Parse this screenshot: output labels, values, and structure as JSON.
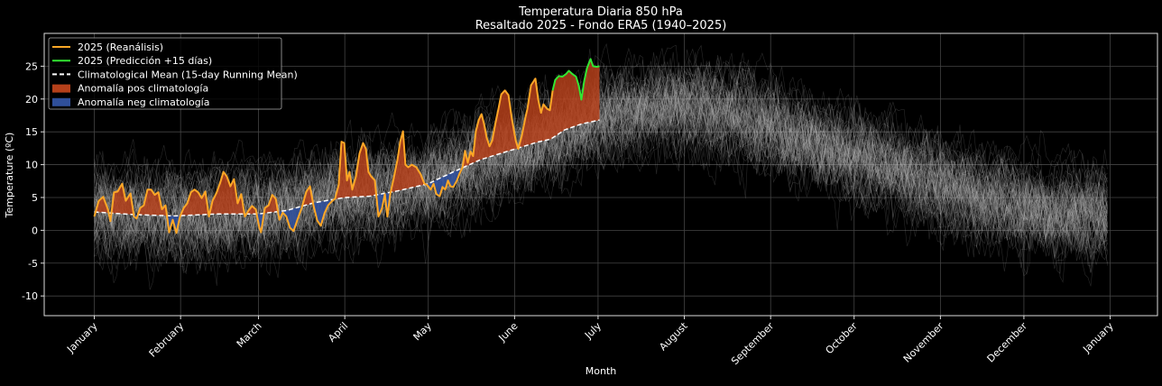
{
  "chart_data": {
    "type": "line",
    "title": "Temperatura Diaria 850 hPa",
    "subtitle": "Resaltado 2025 - Fondo ERA5 (1940–2025)",
    "xlabel": "Month",
    "ylabel": "Temperature (ºC)",
    "ylim": [
      -13,
      30
    ],
    "xlim_day_of_year": [
      -17,
      383
    ],
    "grid": true,
    "legend_position": "top-left",
    "x_ticks": [
      {
        "day": 1,
        "label": "January"
      },
      {
        "day": 32,
        "label": "February"
      },
      {
        "day": 60,
        "label": "March"
      },
      {
        "day": 91,
        "label": "April"
      },
      {
        "day": 121,
        "label": "May"
      },
      {
        "day": 152,
        "label": "June"
      },
      {
        "day": 182,
        "label": "July"
      },
      {
        "day": 213,
        "label": "August"
      },
      {
        "day": 244,
        "label": "September"
      },
      {
        "day": 274,
        "label": "October"
      },
      {
        "day": 305,
        "label": "November"
      },
      {
        "day": 335,
        "label": "December"
      },
      {
        "day": 366,
        "label": "January"
      }
    ],
    "y_ticks": [
      -10,
      -5,
      0,
      5,
      10,
      15,
      20,
      25
    ],
    "legend": [
      {
        "label": "2025 (Reanálisis)",
        "kind": "line",
        "color": "#ffa726"
      },
      {
        "label": "2025 (Predicción +15 días)",
        "kind": "line",
        "color": "#33e633"
      },
      {
        "label": "Climatological Mean (15-day Running Mean)",
        "kind": "dashed",
        "color": "#ffffff"
      },
      {
        "label": "Anomalía pos climatología",
        "kind": "patch",
        "color": "#b5401a"
      },
      {
        "label": "Anomalía neg climatología",
        "kind": "patch",
        "color": "#2f4f9a"
      }
    ],
    "series": [
      {
        "name": "2025 (Reanálisis)",
        "color": "#ffa726",
        "points": [
          [
            1.0,
            2.1
          ],
          [
            2.6,
            4.5
          ],
          [
            4.2,
            5.1
          ],
          [
            5.9,
            3.2
          ],
          [
            6.8,
            1.4
          ],
          [
            8.1,
            5.8
          ],
          [
            9.4,
            5.9
          ],
          [
            11.0,
            7.1
          ],
          [
            12.3,
            4.5
          ],
          [
            14.0,
            5.6
          ],
          [
            15.3,
            2.1
          ],
          [
            16.2,
            1.8
          ],
          [
            17.5,
            3.4
          ],
          [
            18.8,
            3.8
          ],
          [
            20.1,
            6.2
          ],
          [
            21.4,
            6.2
          ],
          [
            22.7,
            5.4
          ],
          [
            24.0,
            5.8
          ],
          [
            25.3,
            3.2
          ],
          [
            26.6,
            3.8
          ],
          [
            27.9,
            -0.3
          ],
          [
            29.2,
            1.6
          ],
          [
            30.5,
            -0.4
          ],
          [
            31.8,
            2.1
          ],
          [
            33.1,
            3.4
          ],
          [
            34.4,
            4.1
          ],
          [
            35.7,
            5.8
          ],
          [
            37.0,
            6.2
          ],
          [
            38.3,
            5.8
          ],
          [
            39.6,
            4.9
          ],
          [
            40.9,
            5.9
          ],
          [
            42.2,
            2.1
          ],
          [
            43.5,
            4.5
          ],
          [
            44.8,
            5.6
          ],
          [
            46.1,
            7.1
          ],
          [
            47.4,
            8.9
          ],
          [
            48.6,
            8.2
          ],
          [
            49.9,
            6.7
          ],
          [
            51.2,
            7.8
          ],
          [
            52.5,
            4.1
          ],
          [
            53.8,
            5.5
          ],
          [
            55.1,
            2.1
          ],
          [
            56.4,
            3.0
          ],
          [
            57.7,
            3.7
          ],
          [
            59.0,
            3.2
          ],
          [
            60.3,
            0.4
          ],
          [
            60.9,
            -0.3
          ],
          [
            62.3,
            3.4
          ],
          [
            63.6,
            3.8
          ],
          [
            64.9,
            5.4
          ],
          [
            66.2,
            4.8
          ],
          [
            67.5,
            1.6
          ],
          [
            68.7,
            2.7
          ],
          [
            70.0,
            2.1
          ],
          [
            71.3,
            0.4
          ],
          [
            72.6,
            -0.1
          ],
          [
            73.9,
            1.5
          ],
          [
            75.5,
            3.4
          ],
          [
            77.2,
            5.9
          ],
          [
            78.5,
            6.7
          ],
          [
            79.8,
            3.7
          ],
          [
            81.1,
            1.5
          ],
          [
            82.4,
            0.7
          ],
          [
            83.7,
            2.6
          ],
          [
            85.0,
            3.8
          ],
          [
            86.3,
            4.4
          ],
          [
            87.5,
            4.8
          ],
          [
            88.8,
            6.9
          ],
          [
            89.8,
            13.5
          ],
          [
            90.8,
            13.3
          ],
          [
            91.8,
            7.6
          ],
          [
            92.7,
            8.9
          ],
          [
            93.7,
            6.2
          ],
          [
            95.0,
            8.2
          ],
          [
            96.3,
            11.7
          ],
          [
            97.6,
            13.3
          ],
          [
            98.6,
            12.4
          ],
          [
            99.5,
            8.9
          ],
          [
            100.5,
            8.2
          ],
          [
            101.8,
            7.6
          ],
          [
            103.1,
            2.1
          ],
          [
            104.4,
            3.4
          ],
          [
            105.4,
            5.5
          ],
          [
            106.3,
            2.1
          ],
          [
            107.3,
            5.5
          ],
          [
            108.6,
            8.0
          ],
          [
            109.9,
            10.7
          ],
          [
            110.9,
            13.5
          ],
          [
            111.9,
            15.1
          ],
          [
            112.8,
            10.0
          ],
          [
            113.8,
            9.6
          ],
          [
            115.1,
            10.0
          ],
          [
            116.7,
            9.6
          ],
          [
            118.3,
            8.5
          ],
          [
            119.6,
            7.1
          ],
          [
            120.6,
            6.9
          ],
          [
            121.9,
            6.2
          ],
          [
            122.9,
            7.1
          ],
          [
            123.9,
            5.5
          ],
          [
            125.1,
            5.2
          ],
          [
            126.1,
            6.6
          ],
          [
            127.1,
            6.2
          ],
          [
            128.1,
            7.6
          ],
          [
            129.0,
            6.7
          ],
          [
            130.0,
            6.6
          ],
          [
            131.3,
            7.6
          ],
          [
            132.3,
            8.7
          ],
          [
            133.3,
            9.6
          ],
          [
            134.2,
            12.1
          ],
          [
            135.2,
            10.3
          ],
          [
            136.2,
            12.0
          ],
          [
            137.1,
            11.3
          ],
          [
            138.1,
            15.1
          ],
          [
            139.1,
            16.8
          ],
          [
            140.1,
            17.7
          ],
          [
            141.0,
            16.3
          ],
          [
            142.0,
            14.1
          ],
          [
            143.0,
            12.8
          ],
          [
            144.0,
            13.7
          ],
          [
            145.2,
            16.5
          ],
          [
            146.2,
            18.5
          ],
          [
            147.2,
            20.7
          ],
          [
            148.5,
            21.3
          ],
          [
            149.8,
            20.6
          ],
          [
            151.1,
            16.8
          ],
          [
            152.4,
            13.7
          ],
          [
            153.3,
            12.4
          ],
          [
            154.6,
            14.4
          ],
          [
            155.9,
            17.2
          ],
          [
            156.6,
            18.5
          ],
          [
            157.9,
            22.1
          ],
          [
            159.5,
            23.1
          ],
          [
            160.5,
            19.9
          ],
          [
            161.5,
            17.9
          ],
          [
            162.4,
            19.2
          ],
          [
            163.7,
            18.5
          ],
          [
            164.7,
            18.3
          ],
          [
            165.7,
            21.3
          ]
        ]
      },
      {
        "name": "2025 (Predicción +15 días)",
        "color": "#33e633",
        "points": [
          [
            165.7,
            21.3
          ],
          [
            166.6,
            22.9
          ],
          [
            167.9,
            23.5
          ],
          [
            169.2,
            23.4
          ],
          [
            170.5,
            23.8
          ],
          [
            171.5,
            24.3
          ],
          [
            172.8,
            23.8
          ],
          [
            174.1,
            23.4
          ],
          [
            175.1,
            22.0
          ],
          [
            176.0,
            19.9
          ],
          [
            177.0,
            22.7
          ],
          [
            178.0,
            24.7
          ],
          [
            179.3,
            26.1
          ],
          [
            180.2,
            25.0
          ],
          [
            181.5,
            24.9
          ],
          [
            182.5,
            25.0
          ]
        ]
      }
    ],
    "climatology_mean": [
      [
        1,
        2.8
      ],
      [
        15,
        2.4
      ],
      [
        30,
        2.2
      ],
      [
        45,
        2.5
      ],
      [
        60,
        2.5
      ],
      [
        70,
        3.0
      ],
      [
        80,
        4.2
      ],
      [
        91,
        5.0
      ],
      [
        100,
        5.2
      ],
      [
        110,
        6.0
      ],
      [
        121,
        7.1
      ],
      [
        130,
        8.9
      ],
      [
        140,
        10.8
      ],
      [
        150,
        12.1
      ],
      [
        160,
        13.4
      ],
      [
        165,
        13.9
      ],
      [
        170,
        15.3
      ],
      [
        176,
        16.2
      ],
      [
        182.5,
        16.8
      ]
    ],
    "background_ensemble": {
      "name": "ERA5 1940–2025 daily series",
      "years": [
        1940,
        2025
      ],
      "color": "#bbbbbb",
      "approx_mean": [
        [
          1,
          2.8
        ],
        [
          30,
          2.2
        ],
        [
          60,
          2.5
        ],
        [
          91,
          5.0
        ],
        [
          121,
          7.1
        ],
        [
          152,
          12.0
        ],
        [
          182,
          16.8
        ],
        [
          200,
          18.3
        ],
        [
          215,
          18.8
        ],
        [
          230,
          17.5
        ],
        [
          245,
          15.5
        ],
        [
          260,
          13.0
        ],
        [
          274,
          11.0
        ],
        [
          290,
          9.0
        ],
        [
          305,
          7.0
        ],
        [
          320,
          5.0
        ],
        [
          335,
          3.5
        ],
        [
          350,
          2.5
        ],
        [
          366,
          2.0
        ]
      ],
      "approx_spread_std": 3.8
    }
  }
}
